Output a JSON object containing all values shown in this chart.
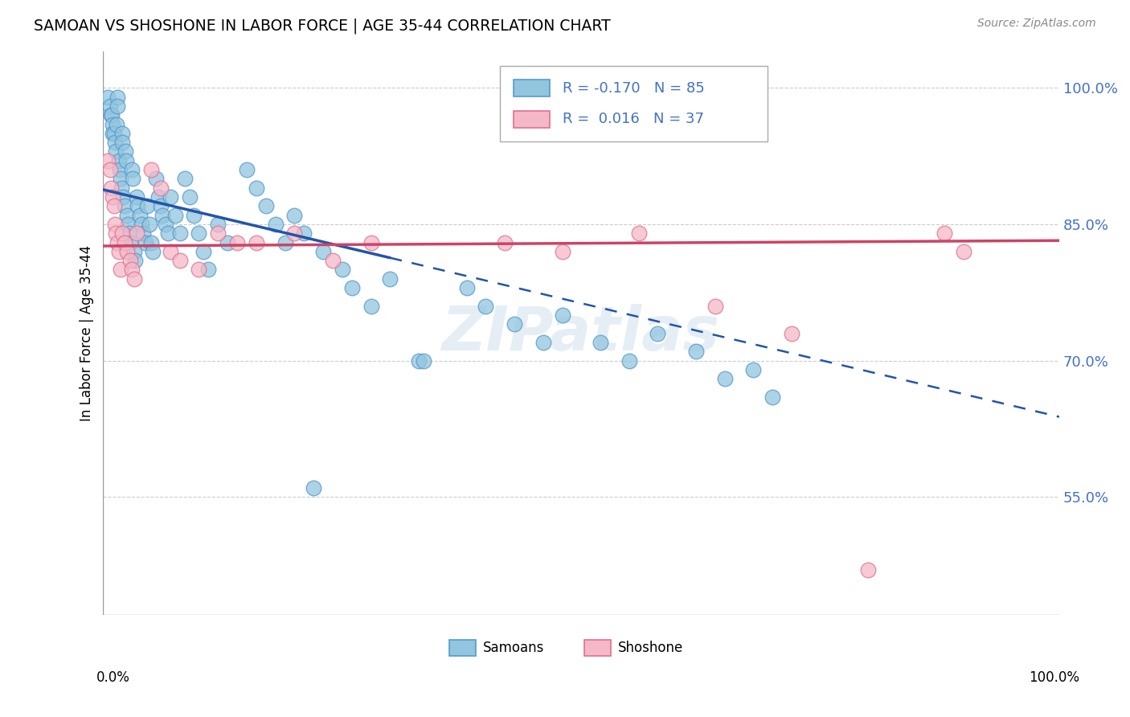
{
  "title": "SAMOAN VS SHOSHONE IN LABOR FORCE | AGE 35-44 CORRELATION CHART",
  "source": "Source: ZipAtlas.com",
  "ylabel": "In Labor Force | Age 35-44",
  "ytick_values": [
    0.55,
    0.7,
    0.85,
    1.0
  ],
  "ytick_labels": [
    "55.0%",
    "70.0%",
    "85.0%",
    "100.0%"
  ],
  "xlim": [
    0.0,
    1.0
  ],
  "ylim": [
    0.42,
    1.04
  ],
  "legend_samoans_R": "-0.170",
  "legend_samoans_N": "85",
  "legend_shoshone_R": "0.016",
  "legend_shoshone_N": "37",
  "watermark": "ZIPatlas",
  "blue_face": "#92c5de",
  "blue_edge": "#5599cc",
  "pink_face": "#f4b8c8",
  "pink_edge": "#e07090",
  "blue_line": "#2255aa",
  "pink_line": "#cc4466",
  "grid_color": "#cccccc",
  "legend_text_blue": "#4472c4",
  "legend_text_pink": "#cc3366"
}
